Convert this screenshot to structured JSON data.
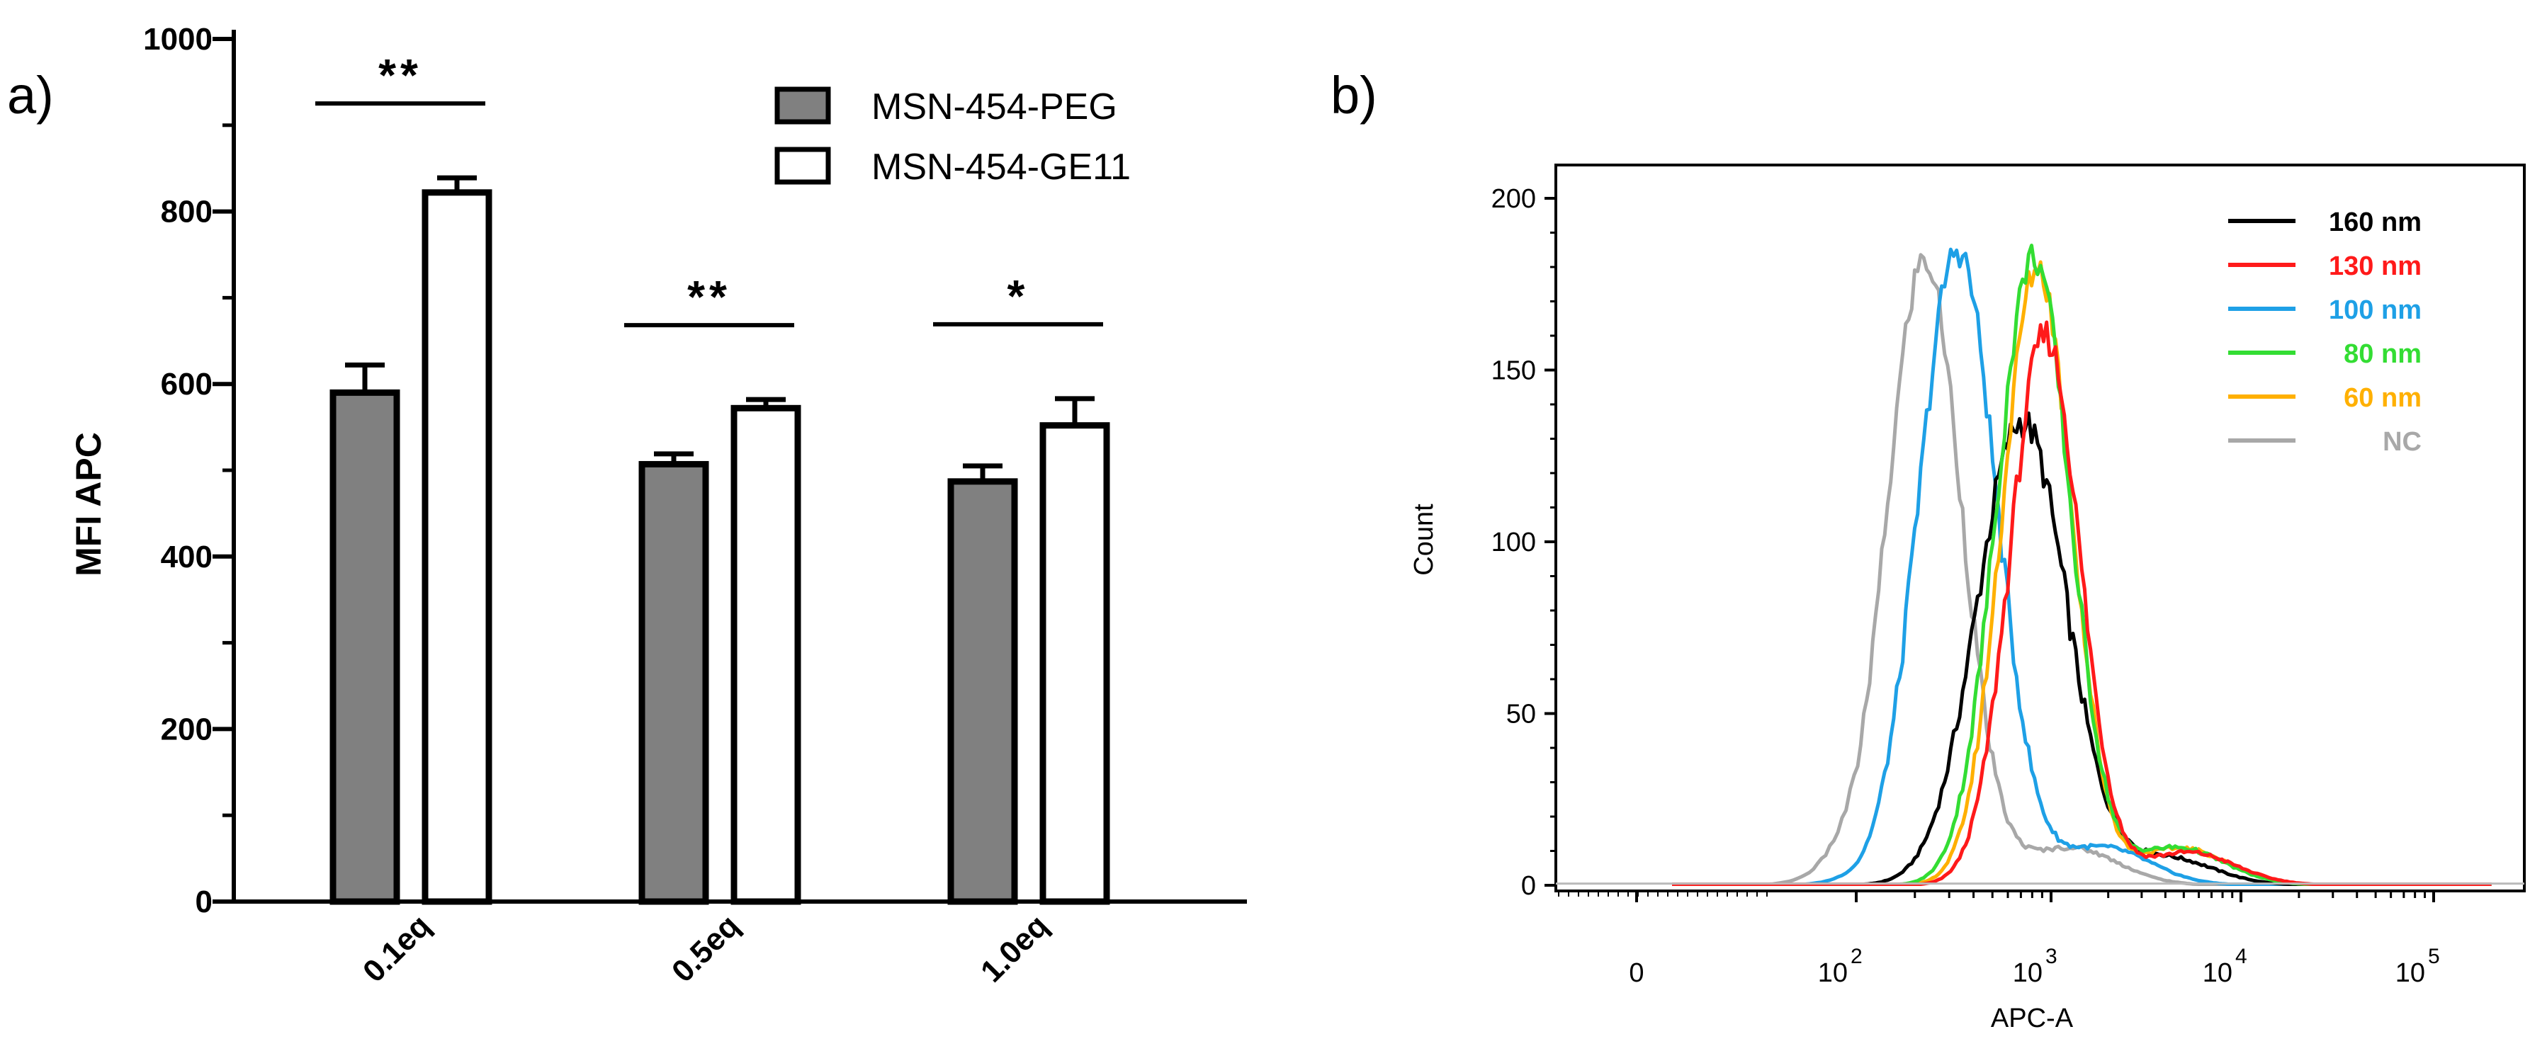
{
  "chart_data": [
    {
      "panel": "a)",
      "type": "bar",
      "ylabel": "MFI APC",
      "xlabel": "",
      "ylim": [
        0,
        1000
      ],
      "yticks": [
        "0",
        "200",
        "400",
        "600",
        "800",
        "1000"
      ],
      "categories": [
        "0.1eq",
        "0.5eq",
        "1.0eq"
      ],
      "series": [
        {
          "name": "MSN-454-PEG",
          "color": "#808080",
          "values": [
            590,
            507,
            487
          ],
          "errors": [
            32,
            12,
            18
          ]
        },
        {
          "name": "MSN-454-GE11",
          "color": "#ffffff",
          "values": [
            822,
            572,
            552
          ],
          "errors": [
            17,
            10,
            31
          ]
        }
      ],
      "significance": [
        "**",
        "**",
        "*"
      ]
    },
    {
      "panel": "b)",
      "type": "line",
      "title": "",
      "xlabel": "APC-A",
      "ylabel": "Count",
      "ylim": [
        0,
        200
      ],
      "yticks": [
        "0",
        "50",
        "100",
        "150",
        "200"
      ],
      "xaxis_scale": "biexponential",
      "xticks": [
        {
          "base": "0",
          "exp": ""
        },
        {
          "base": "10",
          "exp": "2"
        },
        {
          "base": "10",
          "exp": "3"
        },
        {
          "base": "10",
          "exp": "4"
        },
        {
          "base": "10",
          "exp": "5"
        }
      ],
      "series": [
        {
          "name": "160 nm",
          "color": "#000000",
          "peak_x_log10": 2.85,
          "peak_count": 135,
          "width": 0.23
        },
        {
          "name": "130 nm",
          "color": "#ff1a1a",
          "peak_x_log10": 2.97,
          "peak_count": 160,
          "width": 0.18
        },
        {
          "name": "100 nm",
          "color": "#1ea0e6",
          "peak_x_log10": 2.52,
          "peak_count": 185,
          "width": 0.2
        },
        {
          "name": "80 nm",
          "color": "#33dd33",
          "peak_x_log10": 2.91,
          "peak_count": 183,
          "width": 0.19
        },
        {
          "name": "60 nm",
          "color": "#ffb000",
          "peak_x_log10": 2.93,
          "peak_count": 180,
          "width": 0.18
        },
        {
          "name": "NC",
          "color": "#a8a8a8",
          "peak_x_log10": 2.35,
          "peak_count": 182,
          "width": 0.19
        }
      ]
    }
  ]
}
